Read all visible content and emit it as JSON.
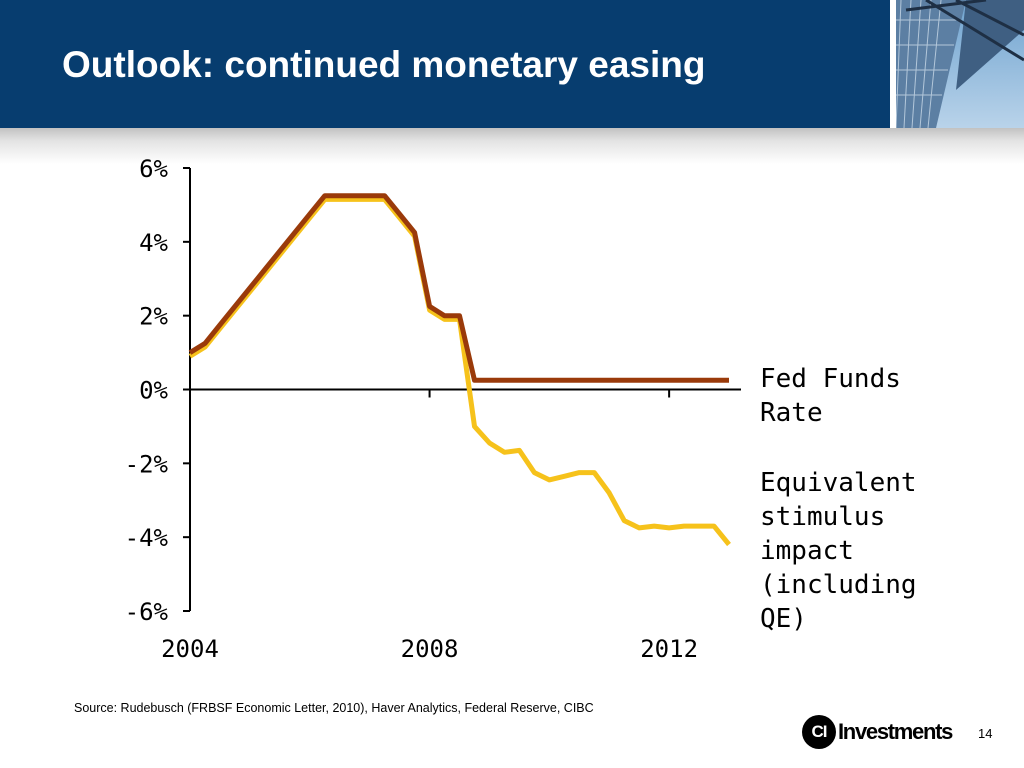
{
  "slide": {
    "title": "Outlook: continued monetary easing",
    "source": "Source: Rudebusch (FRBSF Economic Letter, 2010), Haver Analytics, Federal Reserve, CIBC",
    "page_number": "14",
    "logo_mark": "CI",
    "logo_text": "Investments",
    "header_color": "#073d6f"
  },
  "chart_data": {
    "type": "line",
    "title": "",
    "xlabel": "",
    "ylabel": "",
    "xlim": [
      2004,
      2013.2
    ],
    "ylim": [
      -6,
      6
    ],
    "x_ticks": [
      2004,
      2008,
      2012
    ],
    "x_tick_labels": [
      "2004",
      "2008",
      "2012"
    ],
    "y_ticks": [
      6,
      4,
      2,
      0,
      -2,
      -4,
      -6
    ],
    "y_tick_labels": [
      "6%",
      "4%",
      "2%",
      "0%",
      "-2%",
      "-4%",
      "-6%"
    ],
    "grid": false,
    "legend_placement": "right",
    "series": [
      {
        "name": "Fed Funds Rate",
        "color": "#9a3a0a",
        "x": [
          2004.0,
          2004.25,
          2004.5,
          2004.75,
          2005.0,
          2005.25,
          2005.5,
          2005.75,
          2006.0,
          2006.25,
          2006.5,
          2006.75,
          2007.0,
          2007.25,
          2007.5,
          2007.75,
          2008.0,
          2008.25,
          2008.5,
          2008.75,
          2009.0,
          2010.0,
          2011.0,
          2012.0,
          2013.0
        ],
        "y": [
          1.0,
          1.25,
          1.75,
          2.25,
          2.75,
          3.25,
          3.75,
          4.25,
          4.75,
          5.25,
          5.25,
          5.25,
          5.25,
          5.25,
          4.75,
          4.25,
          2.25,
          2.0,
          2.0,
          0.25,
          0.25,
          0.25,
          0.25,
          0.25,
          0.25
        ]
      },
      {
        "name": "Equivalent stimulus impact (including QE)",
        "color": "#f6c21b",
        "x": [
          2004.0,
          2004.25,
          2004.5,
          2004.75,
          2005.0,
          2005.25,
          2005.5,
          2005.75,
          2006.0,
          2006.25,
          2006.5,
          2006.75,
          2007.0,
          2007.25,
          2007.5,
          2007.75,
          2008.0,
          2008.25,
          2008.5,
          2008.75,
          2009.0,
          2009.25,
          2009.5,
          2009.75,
          2010.0,
          2010.25,
          2010.5,
          2010.75,
          2011.0,
          2011.25,
          2011.5,
          2011.75,
          2012.0,
          2012.25,
          2012.5,
          2012.75,
          2013.0
        ],
        "y": [
          0.9,
          1.15,
          1.65,
          2.15,
          2.65,
          3.15,
          3.65,
          4.15,
          4.65,
          5.15,
          5.15,
          5.15,
          5.15,
          5.15,
          4.65,
          4.15,
          2.15,
          1.9,
          1.9,
          -1.0,
          -1.45,
          -1.7,
          -1.65,
          -2.25,
          -2.45,
          -2.35,
          -2.25,
          -2.25,
          -2.8,
          -3.55,
          -3.75,
          -3.7,
          -3.75,
          -3.7,
          -3.7,
          -3.7,
          -4.2
        ]
      }
    ]
  }
}
